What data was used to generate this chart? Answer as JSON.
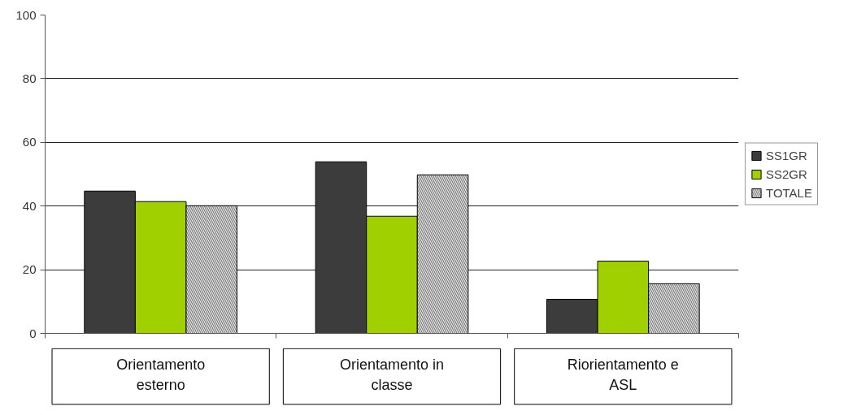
{
  "chart_data": {
    "type": "bar",
    "categories": [
      "Orientamento esterno",
      "Orientamento in classe",
      "Riorientamento e ASL"
    ],
    "series": [
      {
        "name": "SS1GR",
        "color": "#3c3c3c",
        "values": [
          44.7,
          53.9,
          10.7
        ]
      },
      {
        "name": "SS2GR",
        "color": "#a0d000",
        "values": [
          41.4,
          36.8,
          22.7
        ]
      },
      {
        "name": "TOTALE",
        "color": "#e4e4e4",
        "values": [
          40.1,
          49.8,
          15.6
        ]
      }
    ],
    "ylim": [
      0,
      100
    ],
    "yticks": [
      0,
      20,
      40,
      60,
      80,
      100
    ],
    "grid": "y",
    "legend": "right"
  }
}
